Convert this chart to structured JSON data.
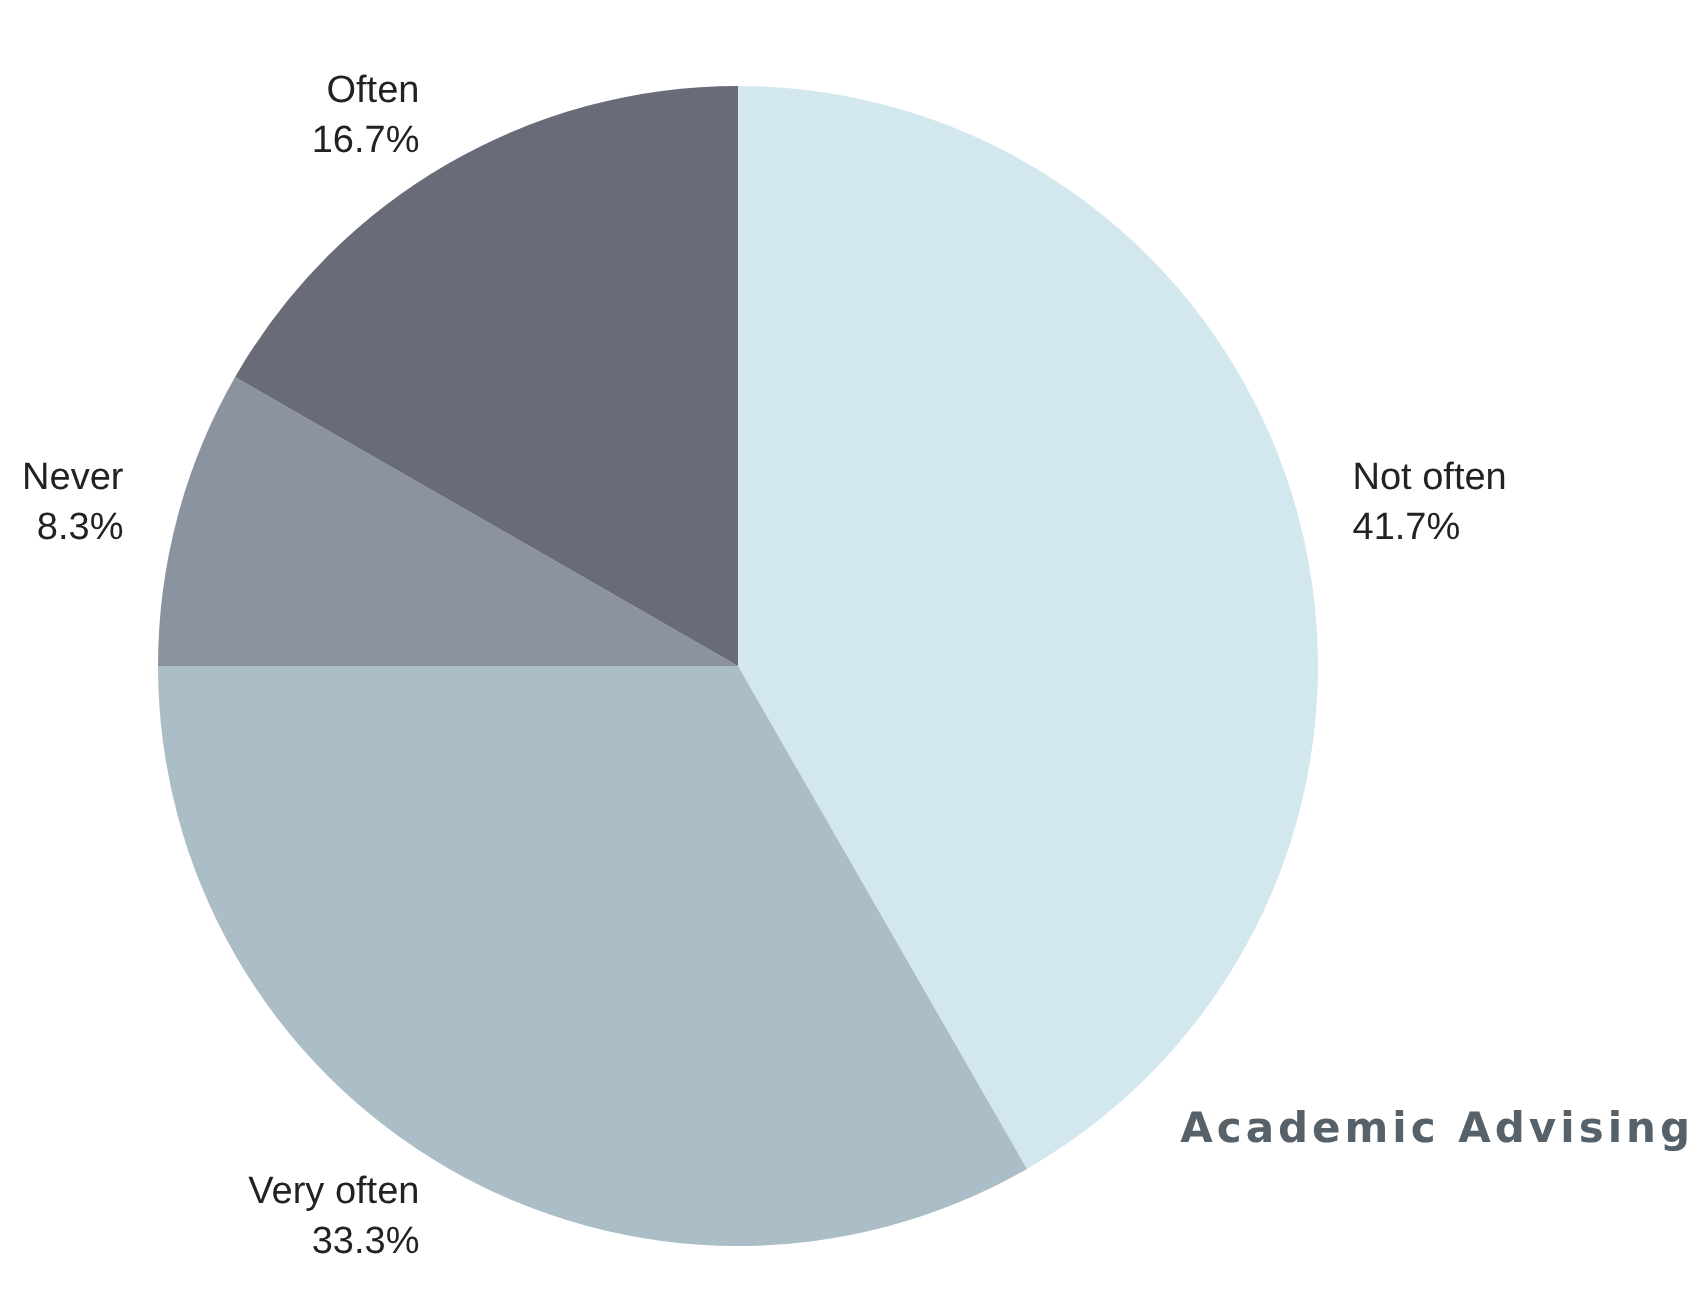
{
  "chart_data": {
    "type": "pie",
    "title": "Academic Advising",
    "categories": [
      "Not often",
      "Very often",
      "Never",
      "Often"
    ],
    "values": [
      41.7,
      33.3,
      8.3,
      16.7
    ],
    "colors": [
      "#d3e8ee",
      "#abbdc7",
      "#8a939f",
      "#6a6b78"
    ],
    "value_labels": [
      "41.7%",
      "33.3%",
      "8.3%",
      "16.7%"
    ],
    "legend": false
  }
}
